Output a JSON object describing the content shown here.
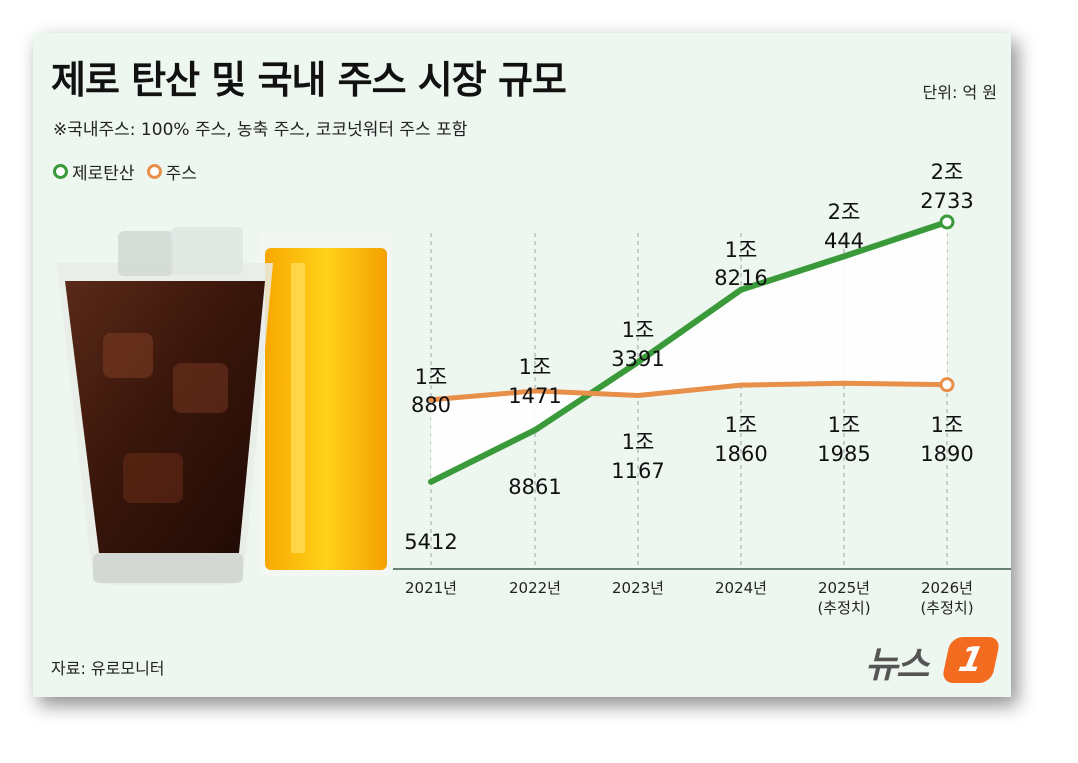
{
  "title": "제로 탄산 및 국내 주스 시장 규모",
  "note": "※국내주스: 100% 주스, 농축 주스, 코코넛워터 주스 포함",
  "unit": "단위: 억 원",
  "source": "자료: 유로모니터",
  "logo": {
    "text": "뉴스",
    "badge": "1"
  },
  "colors": {
    "zero_soda": "#3a9a3a",
    "juice": "#e8904a",
    "background": "#eef6f0"
  },
  "chart_data": {
    "type": "line",
    "title": "제로 탄산 및 국내 주스 시장 규모",
    "unit": "단위: 억 원",
    "categories": [
      "2021년",
      "2022년",
      "2023년",
      "2024년",
      "2025년",
      "2026년"
    ],
    "category_sublabels": [
      "",
      "",
      "",
      "",
      "(추정치)",
      "(추정치)"
    ],
    "series": [
      {
        "name": "제로탄산",
        "color": "#3a9a3a",
        "values": [
          5412,
          8861,
          13391,
          18216,
          20444,
          22733
        ],
        "labels": [
          [
            "5412"
          ],
          [
            "8861"
          ],
          [
            "1조",
            "3391"
          ],
          [
            "1조",
            "8216"
          ],
          [
            "2조",
            "444"
          ],
          [
            "2조",
            "2733"
          ]
        ]
      },
      {
        "name": "주스",
        "color": "#e8904a",
        "values": [
          10880,
          11471,
          11167,
          11860,
          11985,
          11890
        ],
        "labels": [
          [
            "1조",
            "880"
          ],
          [
            "1조",
            "1471"
          ],
          [
            "1조",
            "1167"
          ],
          [
            "1조",
            "1860"
          ],
          [
            "1조",
            "1985"
          ],
          [
            "1조",
            "1890"
          ]
        ]
      }
    ],
    "ylim": [
      4000,
      24000
    ],
    "grid": false,
    "legend": "top-left"
  }
}
